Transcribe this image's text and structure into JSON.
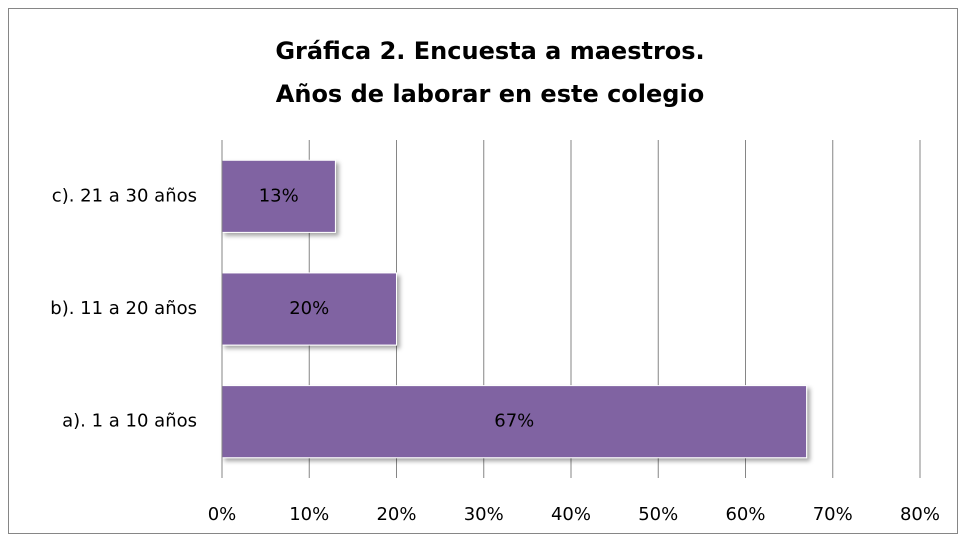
{
  "chart_data": {
    "type": "barh",
    "title": [
      "Gráfica 2. Encuesta a maestros.",
      "Años de laborar en este colegio"
    ],
    "categories": [
      "a). 1 a 10 años",
      "b). 11 a 20 años",
      "c). 21 a 30 años"
    ],
    "values": [
      67,
      20,
      13
    ],
    "value_labels": [
      "67%",
      "20%",
      "13%"
    ],
    "color": "#8064a2",
    "xlim": [
      0,
      80
    ],
    "xticks": [
      {
        "value": 0,
        "label": "0%"
      },
      {
        "value": 10,
        "label": "10%"
      },
      {
        "value": 20,
        "label": "20%"
      },
      {
        "value": 30,
        "label": "30%"
      },
      {
        "value": 40,
        "label": "40%"
      },
      {
        "value": 50,
        "label": "50%"
      },
      {
        "value": 60,
        "label": "60%"
      },
      {
        "value": 70,
        "label": "70%"
      },
      {
        "value": 80,
        "label": "80%"
      }
    ],
    "grid": true
  }
}
